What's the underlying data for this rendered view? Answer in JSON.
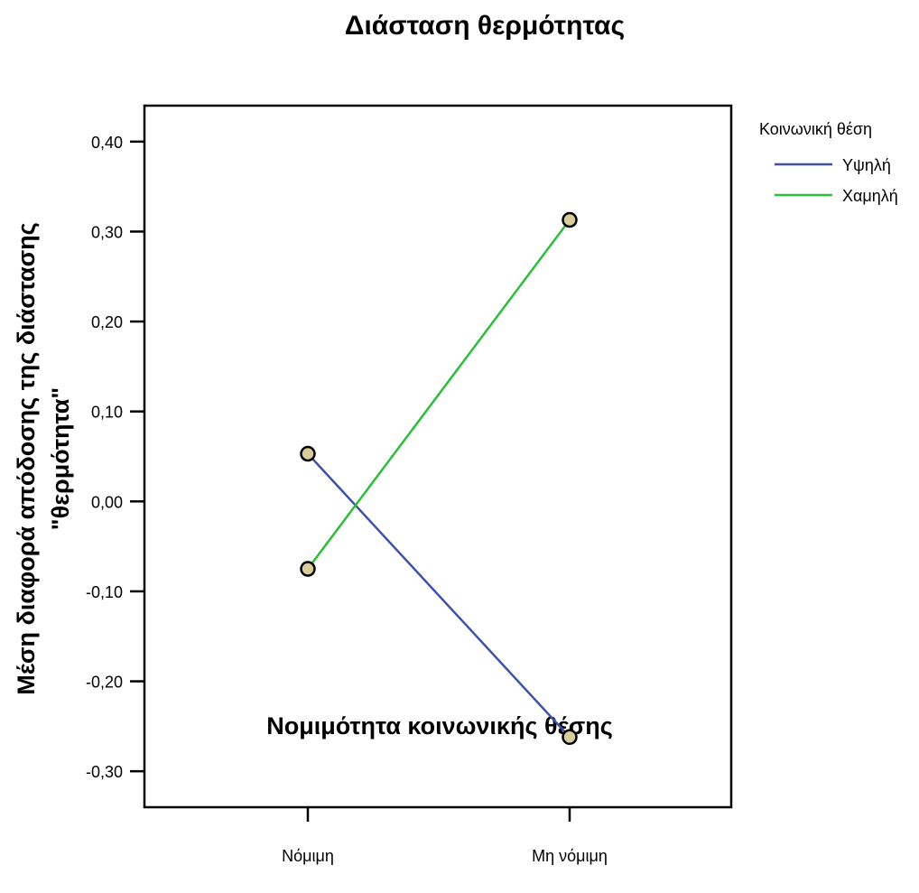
{
  "chart_data": {
    "type": "line",
    "title": "Διάσταση θερμότητας",
    "xlabel": "Νομιμότητα κοινωνικής θέσης",
    "ylabel_lines": [
      "Μέση διαφορά απόδοσης της διάστασης",
      "\"θερμότητα\""
    ],
    "categories": [
      "Νόμιμη",
      "Μη νόμιμη"
    ],
    "ylim": [
      -0.34,
      0.44
    ],
    "yticks": [
      0.4,
      0.3,
      0.2,
      0.1,
      0.0,
      -0.1,
      -0.2,
      -0.3
    ],
    "ytick_labels": [
      "0,40",
      "0,30",
      "0,20",
      "0,10",
      "0,00",
      "-0,10",
      "-0,20",
      "-0,30"
    ],
    "legend_title": "Κοινωνική θέση",
    "legend_position": "top-right, outside plot",
    "marker_color": "#d8cc9c",
    "series": [
      {
        "name": "Υψηλή",
        "color": "#3f51a5",
        "values": [
          0.053,
          -0.262
        ]
      },
      {
        "name": "Χαμηλή",
        "color": "#2ebd3b",
        "values": [
          -0.075,
          0.313
        ]
      }
    ]
  }
}
